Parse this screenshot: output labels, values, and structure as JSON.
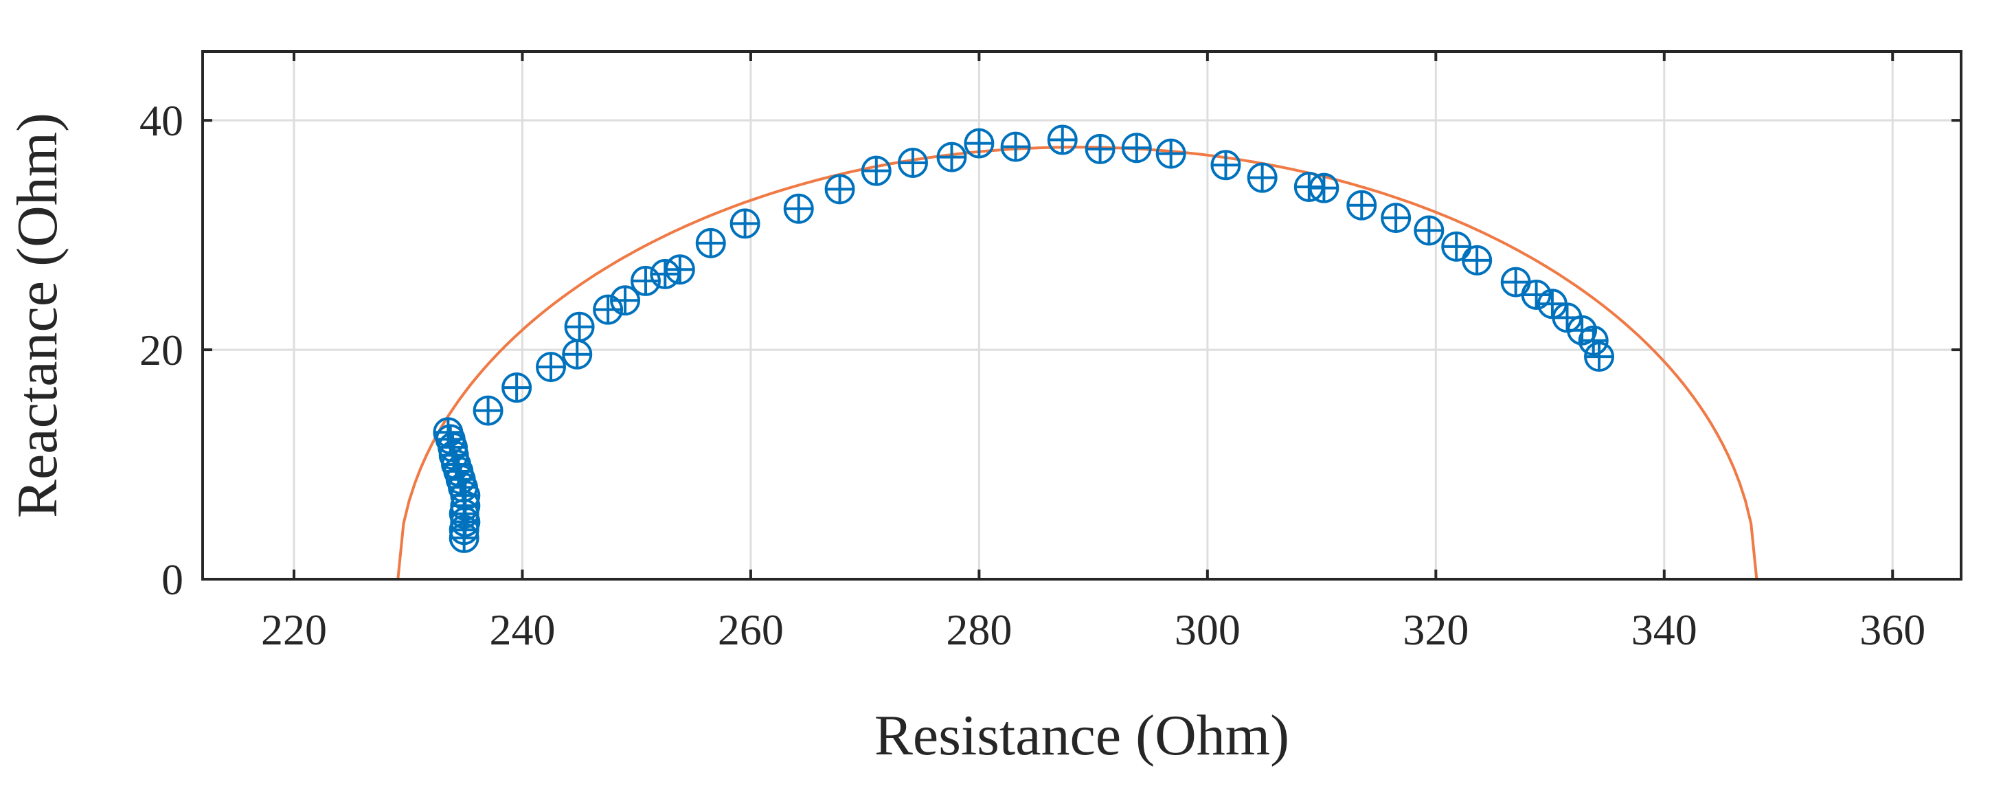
{
  "chart_data": {
    "type": "scatter",
    "title": "",
    "xlabel": "Resistance (Ohm)",
    "ylabel": "Reactance (Ohm)",
    "xlim": [
      212,
      366
    ],
    "ylim": [
      0,
      46
    ],
    "xticks": [
      220,
      240,
      260,
      280,
      300,
      320,
      340,
      360
    ],
    "yticks": [
      0,
      20,
      40
    ],
    "grid": true,
    "legend": "none",
    "colors": {
      "marker": "#0072bd",
      "fit": "#f07a45"
    },
    "series": [
      {
        "type": "scatter",
        "marker": "circle-plus",
        "points": [
          [
            233.5,
            12.8
          ],
          [
            233.7,
            12.2
          ],
          [
            233.9,
            11.5
          ],
          [
            234.0,
            10.8
          ],
          [
            234.2,
            10.0
          ],
          [
            234.4,
            9.4
          ],
          [
            234.6,
            8.7
          ],
          [
            234.8,
            8.0
          ],
          [
            235.0,
            7.3
          ],
          [
            235.0,
            6.4
          ],
          [
            234.9,
            5.7
          ],
          [
            235.0,
            5.0
          ],
          [
            234.9,
            4.3
          ],
          [
            234.9,
            3.6
          ],
          [
            237.0,
            14.7
          ],
          [
            239.5,
            16.7
          ],
          [
            242.5,
            18.5
          ],
          [
            244.8,
            19.6
          ],
          [
            245.0,
            22.0
          ],
          [
            247.5,
            23.5
          ],
          [
            249.0,
            24.3
          ],
          [
            250.8,
            26.0
          ],
          [
            252.5,
            26.6
          ],
          [
            253.8,
            27.0
          ],
          [
            256.5,
            29.3
          ],
          [
            259.5,
            31.0
          ],
          [
            264.2,
            32.3
          ],
          [
            267.8,
            34.0
          ],
          [
            271.0,
            35.6
          ],
          [
            274.2,
            36.3
          ],
          [
            277.6,
            36.8
          ],
          [
            280.0,
            38.0
          ],
          [
            283.2,
            37.7
          ],
          [
            287.3,
            38.3
          ],
          [
            290.6,
            37.5
          ],
          [
            293.8,
            37.6
          ],
          [
            296.8,
            37.1
          ],
          [
            301.6,
            36.1
          ],
          [
            304.8,
            35.0
          ],
          [
            308.9,
            34.2
          ],
          [
            310.2,
            34.1
          ],
          [
            313.5,
            32.6
          ],
          [
            316.5,
            31.5
          ],
          [
            319.4,
            30.4
          ],
          [
            321.8,
            29.0
          ],
          [
            323.6,
            27.8
          ],
          [
            327.0,
            25.9
          ],
          [
            328.8,
            24.8
          ],
          [
            330.2,
            24.0
          ],
          [
            331.5,
            22.8
          ],
          [
            332.8,
            21.7
          ],
          [
            333.8,
            20.8
          ],
          [
            334.3,
            19.4
          ]
        ]
      },
      {
        "type": "line",
        "name": "",
        "shape": "semicircle",
        "center": [
          288.6,
          0
        ],
        "radius": 59.5,
        "y_scale": 0.633
      }
    ]
  }
}
